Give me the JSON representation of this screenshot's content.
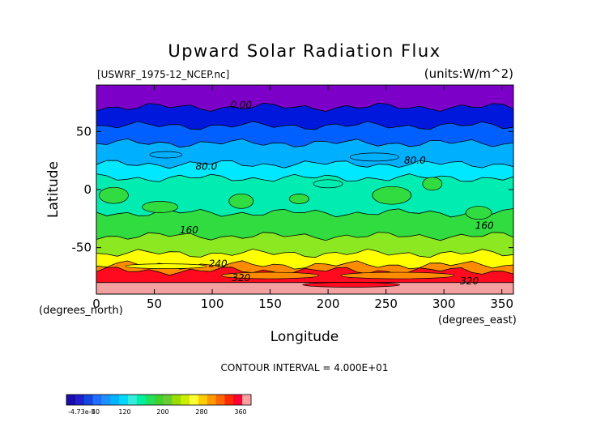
{
  "chart_data": {
    "type": "heatmap",
    "title": "Upward Solar Radiation Flux",
    "file_label": "[USWRF_1975-12_NCEP.nc]",
    "units_label": "(units:W/m^2)",
    "xlabel": "Longitude",
    "ylabel": "Latitude",
    "x_unit_label": "(degrees_east)",
    "y_unit_label": "(degrees_north)",
    "xlim": [
      0,
      360
    ],
    "ylim": [
      -90,
      90
    ],
    "x_ticks": [
      0,
      50,
      100,
      150,
      200,
      250,
      300,
      350
    ],
    "y_ticks": [
      50,
      0,
      -50
    ],
    "contour_interval_text": "CONTOUR INTERVAL = 4.000E+01",
    "contour_labels": [
      {
        "text": "0.00",
        "lon": 125,
        "lat": 73
      },
      {
        "text": "80.0",
        "lon": 95,
        "lat": 20
      },
      {
        "text": "80.0",
        "lon": 275,
        "lat": 25
      },
      {
        "text": "160",
        "lon": 80,
        "lat": -35
      },
      {
        "text": "160",
        "lon": 335,
        "lat": -31
      },
      {
        "text": "240",
        "lon": 105,
        "lat": -64
      },
      {
        "text": "320",
        "lon": 125,
        "lat": -76
      },
      {
        "text": "320",
        "lon": 322,
        "lat": -79
      }
    ],
    "latitude_bands": [
      {
        "lat_from": 90,
        "lat_to": 71,
        "value": 0
      },
      {
        "lat_from": 71,
        "lat_to": 55,
        "value": 25
      },
      {
        "lat_from": 55,
        "lat_to": 40,
        "value": 60
      },
      {
        "lat_from": 40,
        "lat_to": 22,
        "value": 85
      },
      {
        "lat_from": 22,
        "lat_to": 10,
        "value": 110
      },
      {
        "lat_from": 10,
        "lat_to": -20,
        "value": 150
      },
      {
        "lat_from": -20,
        "lat_to": -40,
        "value": 165
      },
      {
        "lat_from": -40,
        "lat_to": -55,
        "value": 185
      },
      {
        "lat_from": -55,
        "lat_to": -65,
        "value": 215
      },
      {
        "lat_from": -65,
        "lat_to": -70,
        "value": 260
      },
      {
        "lat_from": -70,
        "lat_to": -80,
        "value": 325
      },
      {
        "lat_from": -80,
        "lat_to": -90,
        "value": 365
      }
    ],
    "colorbar": {
      "labels": [
        "-4.73e-5",
        "40",
        "120",
        "200",
        "280",
        "360"
      ],
      "colors": [
        "#1a0dab",
        "#2020cc",
        "#1446e0",
        "#1f6eff",
        "#1e90ff",
        "#00b4ff",
        "#00d8ff",
        "#33eedd",
        "#00f0a0",
        "#20e060",
        "#40d030",
        "#66cc33",
        "#99dd00",
        "#ccee00",
        "#ffff33",
        "#ffcc00",
        "#ff9900",
        "#ff6600",
        "#ff2a00",
        "#ff0033",
        "#ffa0a0"
      ]
    },
    "colors": {
      "purple": "#7d00c8",
      "deep_blue": "#0018dc",
      "blue": "#0060ff",
      "light_blue": "#00b0ff",
      "cyan": "#00e8ff",
      "aqua_green": "#00ecb0",
      "green": "#30dc40",
      "yellow_green": "#8ce820",
      "yellow": "#ffff00",
      "orange": "#ff8c00",
      "red": "#ff0a1e",
      "pink": "#f5a0a0"
    },
    "grid": false
  }
}
